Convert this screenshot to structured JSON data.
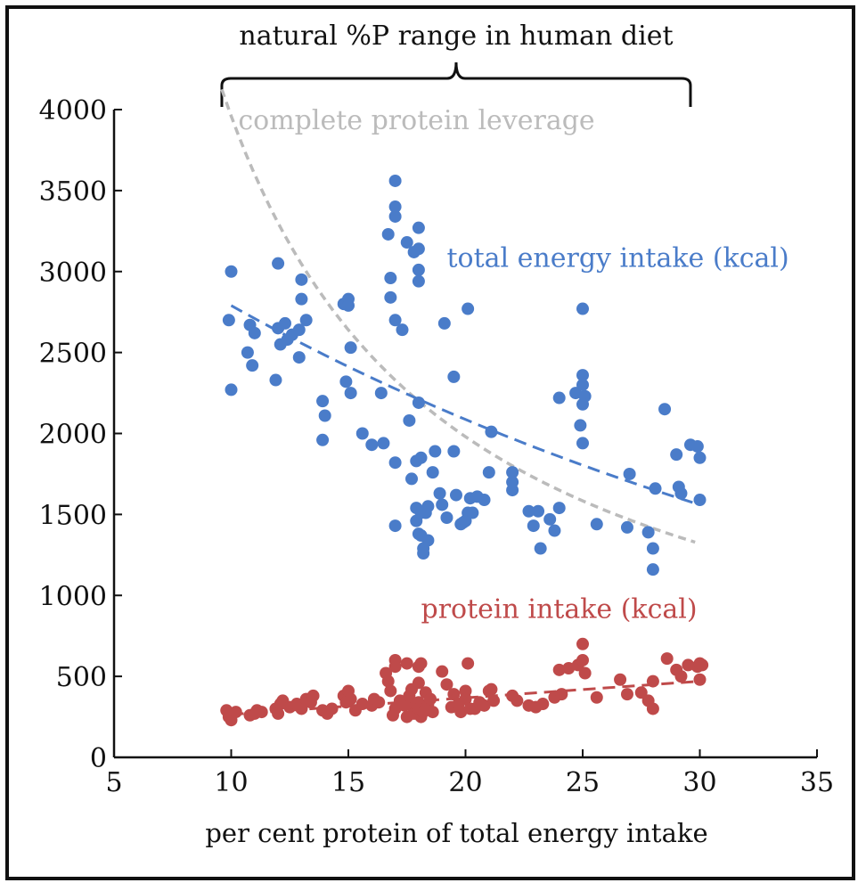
{
  "chart_data": {
    "type": "scatter",
    "title": "",
    "xlabel": "per cent protein of total energy intake",
    "ylabel": "",
    "xlim": [
      5,
      35
    ],
    "ylim": [
      0,
      4000
    ],
    "xticks": [
      5,
      10,
      15,
      20,
      25,
      30,
      35
    ],
    "yticks": [
      0,
      500,
      1000,
      1500,
      2000,
      2500,
      3000,
      3500,
      4000
    ],
    "grid": false,
    "bracket": {
      "label": "natural %P range in human diet",
      "x_start": 9.6,
      "x_end": 29.6
    },
    "colors": {
      "energy": "#4a7cc9",
      "protein": "#bf4a4a",
      "leverage": "#bbbbbb",
      "axis": "#111111"
    },
    "series": [
      {
        "name": "total energy intake (kcal)",
        "label_position": [
          19.2,
          3030
        ],
        "trend": {
          "kind": "exponential",
          "x0": 10,
          "y0": 2790,
          "x1": 30,
          "y1": 1560
        },
        "points": [
          [
            10,
            3000
          ],
          [
            9.9,
            2700
          ],
          [
            10,
            2270
          ],
          [
            10.7,
            2500
          ],
          [
            10.8,
            2670
          ],
          [
            10.9,
            2420
          ],
          [
            11,
            2620
          ],
          [
            12,
            3050
          ],
          [
            11.9,
            2330
          ],
          [
            12,
            2650
          ],
          [
            12.1,
            2550
          ],
          [
            12.3,
            2680
          ],
          [
            12.4,
            2580
          ],
          [
            12.6,
            2610
          ],
          [
            12.9,
            2640
          ],
          [
            13,
            2950
          ],
          [
            13,
            2830
          ],
          [
            12.9,
            2470
          ],
          [
            13.2,
            2700
          ],
          [
            13.9,
            2200
          ],
          [
            14,
            2110
          ],
          [
            13.9,
            1960
          ],
          [
            14.8,
            2800
          ],
          [
            15,
            2830
          ],
          [
            15,
            2790
          ],
          [
            14.9,
            2320
          ],
          [
            15.1,
            2250
          ],
          [
            15.1,
            2530
          ],
          [
            15.6,
            2000
          ],
          [
            16,
            1930
          ],
          [
            16.4,
            2250
          ],
          [
            16.5,
            1940
          ],
          [
            16.7,
            3230
          ],
          [
            16.8,
            2960
          ],
          [
            16.8,
            2840
          ],
          [
            17,
            2700
          ],
          [
            17,
            1820
          ],
          [
            17,
            1430
          ],
          [
            17,
            3560
          ],
          [
            17,
            3400
          ],
          [
            17,
            3340
          ],
          [
            17.3,
            2640
          ],
          [
            17.5,
            3180
          ],
          [
            17.6,
            2080
          ],
          [
            17.7,
            1720
          ],
          [
            17.8,
            3120
          ],
          [
            17.9,
            1830
          ],
          [
            17.9,
            1540
          ],
          [
            17.9,
            1460
          ],
          [
            18,
            1380
          ],
          [
            18,
            2190
          ],
          [
            18,
            3270
          ],
          [
            18,
            3140
          ],
          [
            18,
            3010
          ],
          [
            18,
            2940
          ],
          [
            18.1,
            1850
          ],
          [
            18.1,
            1510
          ],
          [
            18.1,
            1370
          ],
          [
            18.2,
            1290
          ],
          [
            18.2,
            1260
          ],
          [
            18.3,
            1510
          ],
          [
            18.4,
            1340
          ],
          [
            18.4,
            1550
          ],
          [
            18.6,
            1760
          ],
          [
            18.7,
            1890
          ],
          [
            18.9,
            1630
          ],
          [
            19,
            1560
          ],
          [
            19.1,
            2680
          ],
          [
            19.2,
            1480
          ],
          [
            19.5,
            2350
          ],
          [
            19.5,
            1890
          ],
          [
            19.6,
            1620
          ],
          [
            19.8,
            1440
          ],
          [
            19.9,
            1450
          ],
          [
            20,
            1460
          ],
          [
            20.1,
            2770
          ],
          [
            20.1,
            1510
          ],
          [
            20.2,
            1600
          ],
          [
            20.3,
            1510
          ],
          [
            20.5,
            1610
          ],
          [
            20.8,
            1590
          ],
          [
            21,
            1760
          ],
          [
            21.1,
            2010
          ],
          [
            22,
            1650
          ],
          [
            22,
            1760
          ],
          [
            22,
            1700
          ],
          [
            22.7,
            1520
          ],
          [
            22.9,
            1430
          ],
          [
            23.1,
            1520
          ],
          [
            23.2,
            1290
          ],
          [
            23.6,
            1470
          ],
          [
            23.8,
            1400
          ],
          [
            24,
            1540
          ],
          [
            24,
            2220
          ],
          [
            24.7,
            2250
          ],
          [
            24.9,
            2050
          ],
          [
            25,
            2770
          ],
          [
            25,
            2360
          ],
          [
            25,
            2300
          ],
          [
            25,
            2180
          ],
          [
            25,
            1940
          ],
          [
            25.1,
            2230
          ],
          [
            25.6,
            1440
          ],
          [
            26.9,
            1420
          ],
          [
            27,
            1750
          ],
          [
            27.8,
            1390
          ],
          [
            28,
            1290
          ],
          [
            28,
            1160
          ],
          [
            28.1,
            1660
          ],
          [
            28.5,
            2150
          ],
          [
            29,
            1870
          ],
          [
            29.1,
            1670
          ],
          [
            29.2,
            1630
          ],
          [
            29.6,
            1930
          ],
          [
            29.9,
            1920
          ],
          [
            30,
            1850
          ],
          [
            30,
            1590
          ]
        ]
      },
      {
        "name": "protein intake (kcal)",
        "label_position": [
          18.1,
          860
        ],
        "trend": {
          "kind": "linear",
          "x0": 10,
          "y0": 265,
          "x1": 30,
          "y1": 470
        },
        "points": [
          [
            9.8,
            290
          ],
          [
            9.9,
            250
          ],
          [
            10,
            230
          ],
          [
            10.2,
            280
          ],
          [
            10.8,
            260
          ],
          [
            11,
            270
          ],
          [
            11.1,
            290
          ],
          [
            11.3,
            280
          ],
          [
            11.9,
            300
          ],
          [
            12,
            270
          ],
          [
            12.1,
            330
          ],
          [
            12.2,
            350
          ],
          [
            12.5,
            310
          ],
          [
            12.8,
            330
          ],
          [
            13,
            300
          ],
          [
            13.2,
            360
          ],
          [
            13.4,
            340
          ],
          [
            13.5,
            380
          ],
          [
            13.9,
            290
          ],
          [
            14.1,
            270
          ],
          [
            14.3,
            300
          ],
          [
            14.8,
            380
          ],
          [
            14.9,
            340
          ],
          [
            15,
            410
          ],
          [
            15.1,
            360
          ],
          [
            15.3,
            290
          ],
          [
            15.6,
            330
          ],
          [
            16,
            320
          ],
          [
            16.1,
            360
          ],
          [
            16.3,
            340
          ],
          [
            16.6,
            520
          ],
          [
            16.7,
            470
          ],
          [
            16.8,
            410
          ],
          [
            16.9,
            260
          ],
          [
            17,
            600
          ],
          [
            17,
            560
          ],
          [
            17,
            300
          ],
          [
            17.2,
            350
          ],
          [
            17.4,
            320
          ],
          [
            17.5,
            580
          ],
          [
            17.5,
            250
          ],
          [
            17.6,
            380
          ],
          [
            17.7,
            420
          ],
          [
            17.8,
            300
          ],
          [
            17.8,
            270
          ],
          [
            17.9,
            330
          ],
          [
            18,
            560
          ],
          [
            18,
            460
          ],
          [
            18,
            340
          ],
          [
            18,
            300
          ],
          [
            18.1,
            580
          ],
          [
            18.1,
            250
          ],
          [
            18.2,
            280
          ],
          [
            18.3,
            400
          ],
          [
            18.4,
            330
          ],
          [
            18.5,
            360
          ],
          [
            18.6,
            280
          ],
          [
            19,
            530
          ],
          [
            19.2,
            450
          ],
          [
            19.4,
            310
          ],
          [
            19.5,
            390
          ],
          [
            19.7,
            330
          ],
          [
            19.8,
            280
          ],
          [
            20,
            410
          ],
          [
            20,
            360
          ],
          [
            20.1,
            580
          ],
          [
            20.2,
            300
          ],
          [
            20.4,
            300
          ],
          [
            20.6,
            340
          ],
          [
            20.8,
            320
          ],
          [
            21,
            410
          ],
          [
            21.1,
            420
          ],
          [
            21.2,
            350
          ],
          [
            22,
            380
          ],
          [
            22.2,
            350
          ],
          [
            22.7,
            320
          ],
          [
            23,
            310
          ],
          [
            23.3,
            330
          ],
          [
            23.8,
            370
          ],
          [
            24,
            540
          ],
          [
            24.1,
            390
          ],
          [
            24.4,
            550
          ],
          [
            24.8,
            570
          ],
          [
            25,
            700
          ],
          [
            25,
            600
          ],
          [
            25.1,
            520
          ],
          [
            25.6,
            370
          ],
          [
            26.6,
            480
          ],
          [
            26.9,
            390
          ],
          [
            27.5,
            400
          ],
          [
            27.8,
            350
          ],
          [
            28,
            300
          ],
          [
            28,
            470
          ],
          [
            28.6,
            610
          ],
          [
            29,
            540
          ],
          [
            29.2,
            500
          ],
          [
            29.5,
            570
          ],
          [
            29.9,
            560
          ],
          [
            30,
            480
          ],
          [
            30,
            580
          ],
          [
            30.1,
            570
          ]
        ]
      },
      {
        "name": "complete protein leverage",
        "label_position": [
          10.3,
          3880
        ],
        "curve": {
          "kind": "inverse",
          "constant": 39600,
          "x_from": 9.6,
          "x_to": 29.8
        }
      }
    ]
  }
}
